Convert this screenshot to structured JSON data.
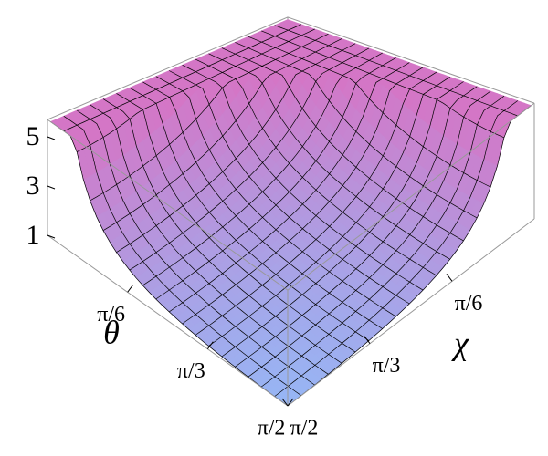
{
  "chart_data": {
    "type": "surface3d",
    "xlabel": "θ",
    "ylabel": "χ",
    "xlim": [
      0,
      1.5708
    ],
    "ylim": [
      0,
      1.5708
    ],
    "zlim": [
      1,
      5.7
    ],
    "xticks": [
      {
        "value": 0.5236,
        "label": "π/6"
      },
      {
        "value": 1.0472,
        "label": "π/3"
      },
      {
        "value": 1.5708,
        "label": "π/2"
      }
    ],
    "yticks": [
      {
        "value": 0.5236,
        "label": "π/6"
      },
      {
        "value": 1.0472,
        "label": "π/3"
      },
      {
        "value": 1.5708,
        "label": "π/2"
      }
    ],
    "zticks": [
      1,
      3,
      5
    ]
  }
}
